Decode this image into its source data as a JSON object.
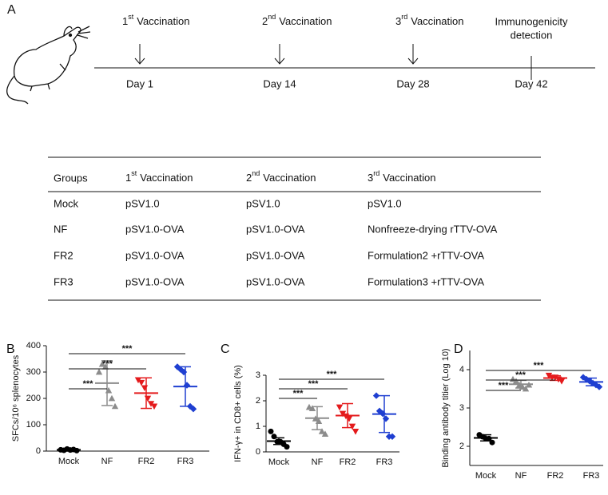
{
  "panel_labels": [
    "A",
    "B",
    "C",
    "D"
  ],
  "timeline": [
    {
      "n": "1",
      "sup": "st",
      "text": "Vaccination",
      "day": "Day 1"
    },
    {
      "n": "2",
      "sup": "nd",
      "text": "Vaccination",
      "day": "Day 14"
    },
    {
      "n": "3",
      "sup": "rd",
      "text": "Vaccination",
      "day": "Day 28"
    },
    {
      "lines": [
        "Immunogenicity",
        "detection"
      ],
      "day": "Day 42"
    }
  ],
  "table": {
    "header": [
      "Groups",
      {
        "n": "1",
        "sup": "st",
        "text": "Vaccination"
      },
      {
        "n": "2",
        "sup": "nd",
        "text": "Vaccination"
      },
      {
        "n": "3",
        "sup": "rd",
        "text": "Vaccination"
      }
    ],
    "rows": [
      [
        "Mock",
        "pSV1.0",
        "pSV1.0",
        "pSV1.0"
      ],
      [
        "NF",
        "pSV1.0-OVA",
        "pSV1.0-OVA",
        "Nonfreeze-drying  rTTV-OVA"
      ],
      [
        "FR2",
        "pSV1.0-OVA",
        "pSV1.0-OVA",
        "Formulation2 +rTTV-OVA"
      ],
      [
        "FR3",
        "pSV1.0-OVA",
        "pSV1.0-OVA",
        "Formulation3 +rTTV-OVA"
      ]
    ]
  },
  "chart_data": [
    {
      "type": "dotplot",
      "y_label": "SFCs/10⁶ splenocytes",
      "categories": [
        "Mock",
        "NF",
        "FR2",
        "FR3"
      ],
      "colors": [
        "#000000",
        "#8c8c8c",
        "#e41a1c",
        "#1f3fd1"
      ],
      "markers": [
        "circle",
        "triangle",
        "triangle-down",
        "diamond"
      ],
      "points": [
        [
          5,
          3,
          8,
          4,
          6,
          2
        ],
        [
          300,
          330,
          320,
          230,
          200,
          170
        ],
        [
          270,
          260,
          240,
          200,
          180,
          170
        ],
        [
          320,
          310,
          300,
          250,
          170,
          160
        ]
      ],
      "means": [
        5,
        258,
        220,
        245
      ],
      "sd": [
        2,
        85,
        58,
        75
      ],
      "significance": [
        "***",
        "***",
        "***"
      ],
      "ylim": [
        0,
        400
      ],
      "yticks": [
        0,
        100,
        200,
        300,
        400
      ]
    },
    {
      "type": "dotplot",
      "y_label": "IFN-γ+ in CD8+ cells (%)",
      "categories": [
        "Mock",
        "NF",
        "FR2",
        "FR3"
      ],
      "colors": [
        "#000000",
        "#8c8c8c",
        "#e41a1c",
        "#1f3fd1"
      ],
      "markers": [
        "circle",
        "triangle",
        "triangle-down",
        "diamond"
      ],
      "points": [
        [
          0.8,
          0.6,
          0.4,
          0.4,
          0.3,
          0.2
        ],
        [
          1.75,
          1.7,
          1.3,
          1.2,
          0.8,
          0.7
        ],
        [
          1.75,
          1.5,
          1.4,
          1.3,
          1.0,
          0.8
        ],
        [
          2.2,
          1.6,
          1.5,
          1.3,
          0.6,
          0.6
        ]
      ],
      "means": [
        0.42,
        1.32,
        1.42,
        1.48
      ],
      "sd": [
        0.13,
        0.45,
        0.47,
        0.72
      ],
      "significance": [
        "***",
        "***",
        "***"
      ],
      "ylim": [
        0,
        3
      ],
      "yticks": [
        0,
        1,
        2,
        3
      ]
    },
    {
      "type": "dotplot",
      "y_label": "Binding antibody titier (Log 10)",
      "categories": [
        "Mock",
        "NF",
        "FR2",
        "FR3"
      ],
      "colors": [
        "#000000",
        "#8c8c8c",
        "#e41a1c",
        "#1f3fd1"
      ],
      "markers": [
        "circle",
        "triangle",
        "triangle-down",
        "diamond"
      ],
      "points": [
        [
          2.3,
          2.25,
          2.2,
          2.2,
          2.1
        ],
        [
          3.75,
          3.7,
          3.6,
          3.55,
          3.5,
          3.6
        ],
        [
          3.85,
          3.8,
          3.8,
          3.75,
          3.7
        ],
        [
          3.8,
          3.75,
          3.7,
          3.65,
          3.6,
          3.55
        ]
      ],
      "means": [
        2.22,
        3.62,
        3.78,
        3.68
      ],
      "sd": [
        0.08,
        0.1,
        0.06,
        0.1
      ],
      "significance": [
        "***",
        "***",
        "***"
      ],
      "ylim": [
        1.5,
        4.5
      ],
      "yticks": [
        2,
        3,
        4
      ]
    }
  ]
}
